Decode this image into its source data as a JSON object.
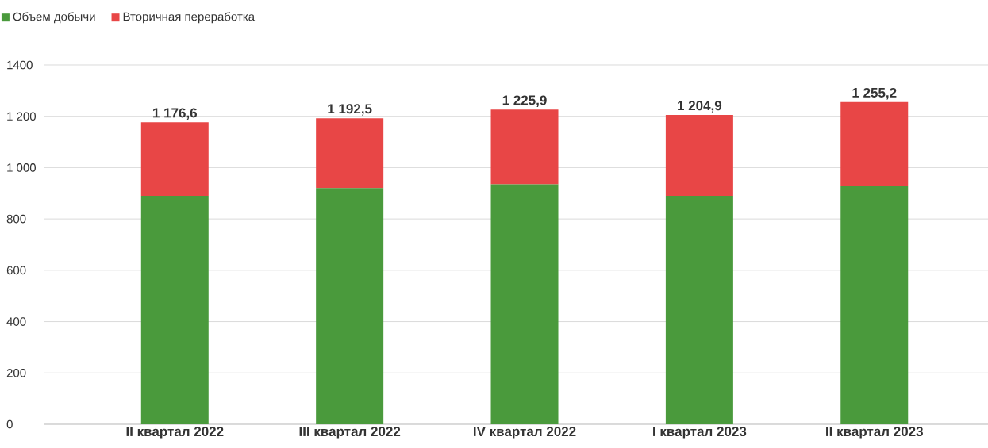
{
  "chart_data": {
    "type": "bar",
    "stacked": true,
    "categories": [
      "II квартал 2022",
      "III квартал 2022",
      "IV квартал 2022",
      "I квартал 2023",
      "II квартал 2023"
    ],
    "series": [
      {
        "name": "Объем добычи",
        "color": "#4a9a3c",
        "values": [
          890,
          920,
          935,
          890,
          930
        ]
      },
      {
        "name": "Вторичная переработка",
        "color": "#e84646",
        "values": [
          286.6,
          272.5,
          290.9,
          314.9,
          325.2
        ]
      }
    ],
    "totals": [
      "1 176,6",
      "1 192,5",
      "1 225,9",
      "1 204,9",
      "1 255,2"
    ],
    "ylim": [
      0,
      1400
    ],
    "yticks": [
      0,
      200,
      400,
      600,
      800,
      {
        "value": 1000,
        "label": "1 000"
      },
      {
        "value": 1200,
        "label": "1 200"
      },
      1400
    ],
    "grid": "y",
    "legend": "top left"
  }
}
